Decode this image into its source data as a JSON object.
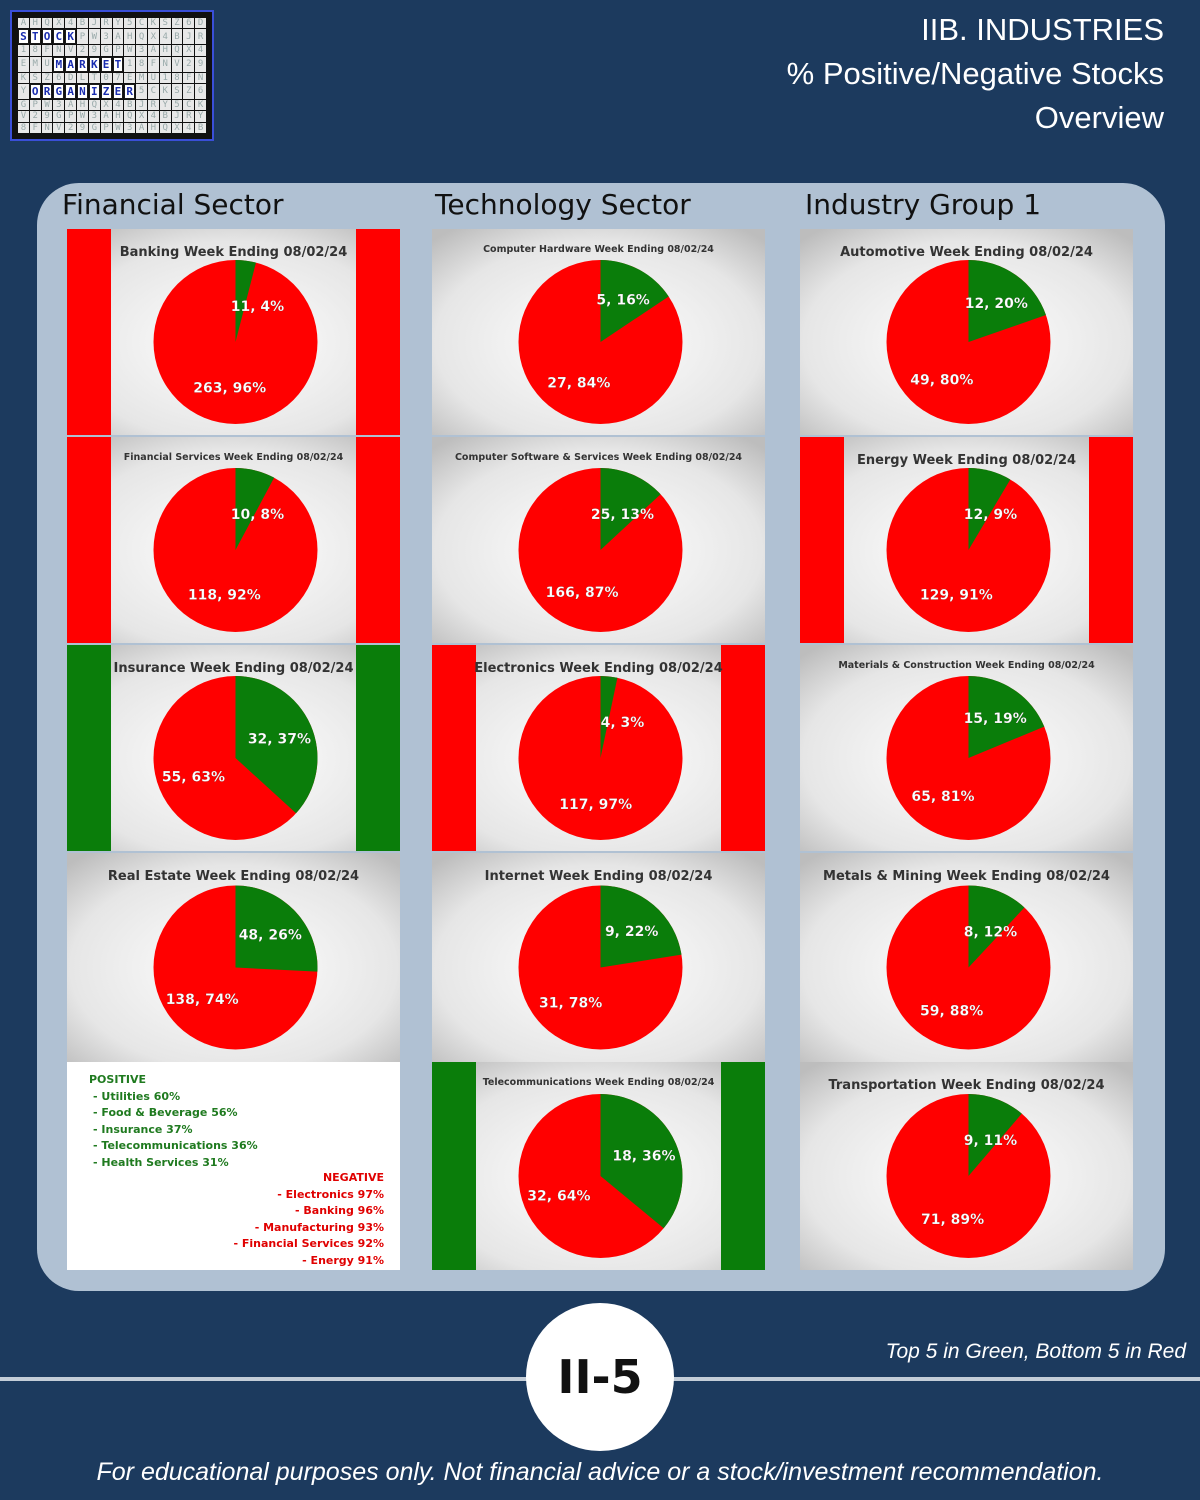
{
  "header": {
    "line1": "IIB. INDUSTRIES",
    "line2": "% Positive/Negative Stocks",
    "line3": "Overview"
  },
  "logo": {
    "words": [
      "STOCK",
      "MARKET",
      "ORGANIZER"
    ],
    "accent": "#3a4fd8"
  },
  "columns": [
    {
      "title": "Financial Sector"
    },
    {
      "title": "Technology Sector"
    },
    {
      "title": "Industry Group 1"
    }
  ],
  "colors": {
    "positive": "#0a7d0a",
    "negative": "#ff0000",
    "background": "#1c3a5e",
    "panel": "#b0c1d3"
  },
  "chart_data": [
    {
      "type": "pie",
      "title": "Banking Week Ending 08/02/24",
      "title_small": false,
      "bars": "red",
      "slices": [
        {
          "label": "Positive",
          "value": 11,
          "pct": 4,
          "text": "11, 4%"
        },
        {
          "label": "Negative",
          "value": 263,
          "pct": 96,
          "text": "263, 96%"
        }
      ]
    },
    {
      "type": "pie",
      "title": "Financial Services Week Ending 08/02/24",
      "title_small": true,
      "bars": "red",
      "slices": [
        {
          "label": "Positive",
          "value": 10,
          "pct": 8,
          "text": "10, 8%"
        },
        {
          "label": "Negative",
          "value": 118,
          "pct": 92,
          "text": "118, 92%"
        }
      ]
    },
    {
      "type": "pie",
      "title": "Insurance Week Ending 08/02/24",
      "title_small": false,
      "bars": "green",
      "slices": [
        {
          "label": "Positive",
          "value": 32,
          "pct": 37,
          "text": "32, 37%"
        },
        {
          "label": "Negative",
          "value": 55,
          "pct": 63,
          "text": "55, 63%"
        }
      ]
    },
    {
      "type": "pie",
      "title": "Real Estate Week Ending 08/02/24",
      "title_small": false,
      "bars": "none",
      "slices": [
        {
          "label": "Positive",
          "value": 48,
          "pct": 26,
          "text": "48, 26%"
        },
        {
          "label": "Negative",
          "value": 138,
          "pct": 74,
          "text": "138, 74%"
        }
      ]
    },
    {
      "type": "pie",
      "title": "Computer Hardware Week Ending 08/02/24",
      "title_small": true,
      "bars": "none",
      "slices": [
        {
          "label": "Positive",
          "value": 5,
          "pct": 16,
          "text": "5, 16%"
        },
        {
          "label": "Negative",
          "value": 27,
          "pct": 84,
          "text": "27, 84%"
        }
      ]
    },
    {
      "type": "pie",
      "title": "Computer Software & Services Week Ending 08/02/24",
      "title_small": true,
      "bars": "none",
      "slices": [
        {
          "label": "Positive",
          "value": 25,
          "pct": 13,
          "text": "25, 13%"
        },
        {
          "label": "Negative",
          "value": 166,
          "pct": 87,
          "text": "166, 87%"
        }
      ]
    },
    {
      "type": "pie",
      "title": "Electronics Week Ending 08/02/24",
      "title_small": false,
      "bars": "red",
      "slices": [
        {
          "label": "Positive",
          "value": 4,
          "pct": 3,
          "text": "4, 3%"
        },
        {
          "label": "Negative",
          "value": 117,
          "pct": 97,
          "text": "117, 97%"
        }
      ]
    },
    {
      "type": "pie",
      "title": "Internet Week Ending 08/02/24",
      "title_small": false,
      "bars": "none",
      "slices": [
        {
          "label": "Positive",
          "value": 9,
          "pct": 22,
          "text": "9, 22%"
        },
        {
          "label": "Negative",
          "value": 31,
          "pct": 78,
          "text": "31, 78%"
        }
      ]
    },
    {
      "type": "pie",
      "title": "Telecommunications Week Ending 08/02/24",
      "title_small": true,
      "bars": "green",
      "slices": [
        {
          "label": "Positive",
          "value": 18,
          "pct": 36,
          "text": "18, 36%"
        },
        {
          "label": "Negative",
          "value": 32,
          "pct": 64,
          "text": "32, 64%"
        }
      ]
    },
    {
      "type": "pie",
      "title": "Automotive Week Ending 08/02/24",
      "title_small": false,
      "bars": "none",
      "slices": [
        {
          "label": "Positive",
          "value": 12,
          "pct": 20,
          "text": "12, 20%"
        },
        {
          "label": "Negative",
          "value": 49,
          "pct": 80,
          "text": "49, 80%"
        }
      ]
    },
    {
      "type": "pie",
      "title": "Energy Week Ending 08/02/24",
      "title_small": false,
      "bars": "red",
      "slices": [
        {
          "label": "Positive",
          "value": 12,
          "pct": 9,
          "text": "12, 9%"
        },
        {
          "label": "Negative",
          "value": 129,
          "pct": 91,
          "text": "129, 91%"
        }
      ]
    },
    {
      "type": "pie",
      "title": "Materials & Construction Week Ending 08/02/24",
      "title_small": true,
      "bars": "none",
      "slices": [
        {
          "label": "Positive",
          "value": 15,
          "pct": 19,
          "text": "15, 19%"
        },
        {
          "label": "Negative",
          "value": 65,
          "pct": 81,
          "text": "65, 81%"
        }
      ]
    },
    {
      "type": "pie",
      "title": "Metals & Mining  Week Ending  08/02/24",
      "title_small": false,
      "bars": "none",
      "slices": [
        {
          "label": "Positive",
          "value": 8,
          "pct": 12,
          "text": "8, 12%"
        },
        {
          "label": "Negative",
          "value": 59,
          "pct": 88,
          "text": "59, 88%"
        }
      ]
    },
    {
      "type": "pie",
      "title": "Transportation  Week Ending 08/02/24",
      "title_small": false,
      "bars": "none",
      "slices": [
        {
          "label": "Positive",
          "value": 9,
          "pct": 11,
          "text": "9, 11%"
        },
        {
          "label": "Negative",
          "value": 71,
          "pct": 89,
          "text": "71, 89%"
        }
      ]
    }
  ],
  "summary": {
    "positive_header": "POSITIVE",
    "positive": [
      "- Utilities 60%",
      "- Food & Beverage 56%",
      "- Insurance 37%",
      "- Telecommunications 36%",
      "- Health Services 31%"
    ],
    "negative_header": "NEGATIVE",
    "negative": [
      "- Electronics 97%",
      "- Banking 96%",
      "- Manufacturing 93%",
      "- Financial Services 92%",
      "- Energy 91%"
    ]
  },
  "note": "Top 5 in Green, Bottom 5 in Red",
  "badge": "II-5",
  "disclaimer": "For educational purposes only. Not financial advice or a stock/investment recommendation."
}
